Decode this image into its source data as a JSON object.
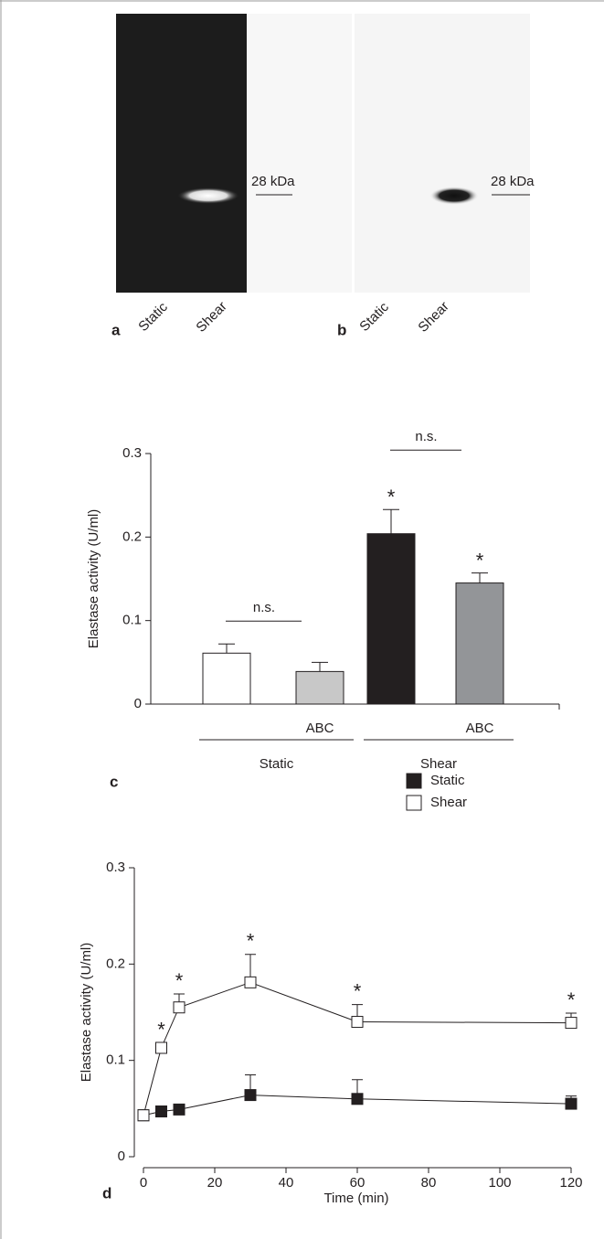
{
  "blots": [
    {
      "label": "a",
      "lanes": [
        "Static",
        "Shear"
      ],
      "marker": "28 kDa"
    },
    {
      "label": "b",
      "lanes": [
        "Static",
        "Shear"
      ],
      "marker": "28 kDa"
    }
  ],
  "chart_data": [
    {
      "type": "bar",
      "panel": "c",
      "ylabel": "Elastase activity (U/ml)",
      "categories": [
        null,
        "ABC",
        null,
        "ABC"
      ],
      "groups": [
        "Static",
        "Shear"
      ],
      "values": [
        0.061,
        0.039,
        0.204,
        0.145
      ],
      "errors": [
        0.011,
        0.011,
        0.029,
        0.012
      ],
      "colors": [
        "#ffffff",
        "#c8c8c8",
        "#231f20",
        "#939598"
      ],
      "marks": [
        null,
        null,
        "*",
        "*"
      ],
      "comparisons": [
        {
          "label": "n.s.",
          "between": [
            0,
            1
          ]
        },
        {
          "label": "n.s.",
          "between": [
            2,
            3
          ]
        }
      ],
      "ylim": [
        0,
        0.3
      ],
      "yticks": [
        0,
        0.1,
        0.2,
        0.3
      ]
    },
    {
      "type": "line",
      "panel": "d",
      "xlabel": "Time (min)",
      "ylabel": "Elastase activity (U/ml)",
      "x": [
        0,
        5,
        10,
        30,
        60,
        120
      ],
      "series": [
        {
          "name": "Static",
          "color": "#231f20",
          "values": [
            0.043,
            0.047,
            0.049,
            0.064,
            0.06,
            0.055
          ],
          "errors": [
            0.005,
            0.004,
            0.004,
            0.021,
            0.02,
            0.008
          ],
          "marks": [
            null,
            null,
            null,
            null,
            null,
            null
          ]
        },
        {
          "name": "Shear",
          "color": "#ffffff",
          "values": [
            0.043,
            0.113,
            0.155,
            0.181,
            0.14,
            0.139
          ],
          "errors": [
            0.005,
            0.005,
            0.014,
            0.029,
            0.018,
            0.01
          ],
          "marks": [
            null,
            "*",
            "*",
            "*",
            "*",
            "*"
          ]
        }
      ],
      "legend": "top-right",
      "xlim": [
        0,
        120
      ],
      "xticks": [
        0,
        20,
        40,
        60,
        80,
        100,
        120
      ],
      "ylim": [
        0,
        0.3
      ],
      "yticks": [
        0,
        0.1,
        0.2,
        0.3
      ]
    }
  ]
}
